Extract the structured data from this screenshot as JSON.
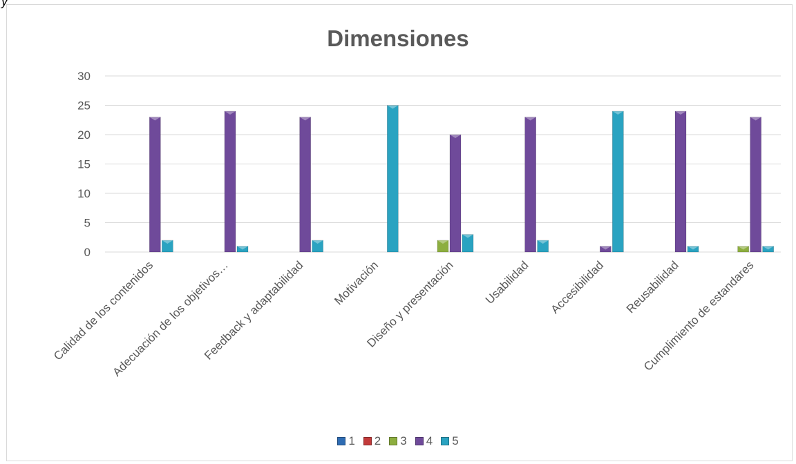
{
  "corner_mark": "y",
  "colors": {
    "s1": "#2e6cb3",
    "s2": "#c23a3a",
    "s3": "#8dae3f",
    "s4": "#6f4a9a",
    "s5": "#2aa3c1",
    "grid": "#d9d9d9",
    "text": "#595959"
  },
  "chart_data": {
    "type": "bar",
    "title": "Dimensiones",
    "xlabel": "",
    "ylabel": "",
    "ylim": [
      0,
      30
    ],
    "yticks": [
      0,
      5,
      10,
      15,
      20,
      25,
      30
    ],
    "grid": true,
    "legend_position": "bottom",
    "categories": [
      "Calidad de los contenidos",
      "Adecuación de los objetivos…",
      "Feedback y adaptabilidad",
      "Motivación",
      "Diseño y presentación",
      "Usabilidad",
      "Accesibilidad",
      "Reusabilidad",
      "Cumplimiento de estandares"
    ],
    "series": [
      {
        "name": "1",
        "color": "#2e6cb3",
        "values": [
          0,
          0,
          0,
          0,
          0,
          0,
          0,
          0,
          0
        ]
      },
      {
        "name": "2",
        "color": "#c23a3a",
        "values": [
          0,
          0,
          0,
          0,
          0,
          0,
          0,
          0,
          0
        ]
      },
      {
        "name": "3",
        "color": "#8dae3f",
        "values": [
          0,
          0,
          0,
          0,
          2,
          0,
          0,
          0,
          1
        ]
      },
      {
        "name": "4",
        "color": "#6f4a9a",
        "values": [
          23,
          24,
          23,
          0,
          20,
          23,
          1,
          24,
          23
        ]
      },
      {
        "name": "5",
        "color": "#2aa3c1",
        "values": [
          2,
          1,
          2,
          25,
          3,
          2,
          24,
          1,
          1
        ]
      }
    ]
  }
}
